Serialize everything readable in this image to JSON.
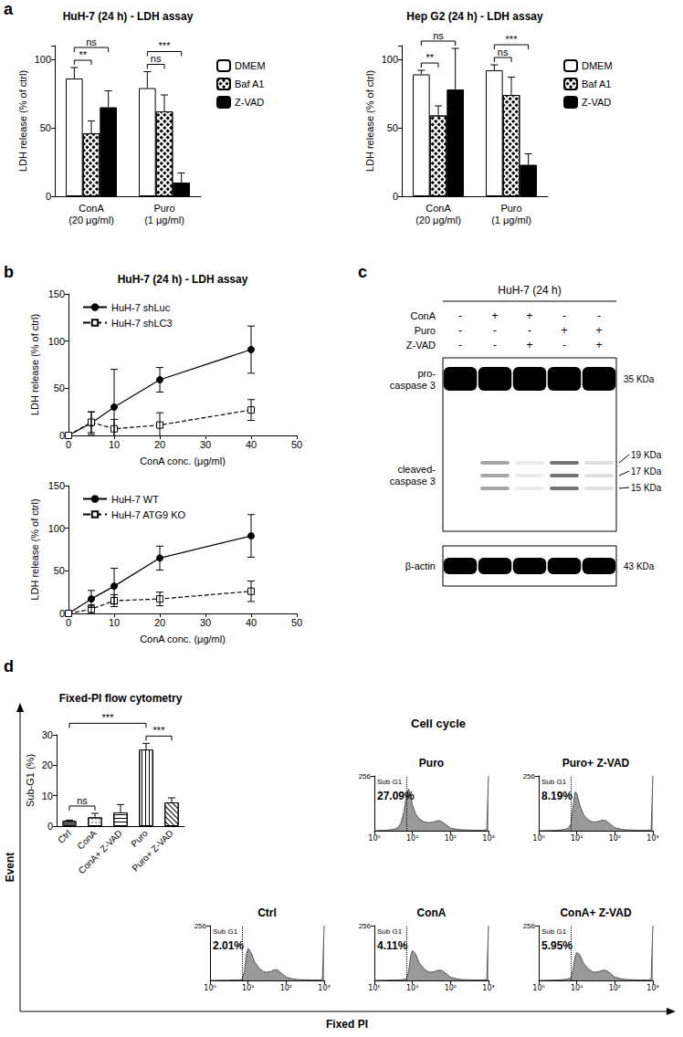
{
  "chart_data": [
    {
      "type": "bar",
      "title": "HuH-7 (24 h) - LDH assay",
      "y_label": "LDH release (% of ctrl)",
      "categories": [
        "ConA\n(20 μg/ml)",
        "Puro\n(1 μg/ml)"
      ],
      "series": [
        {
          "name": "DMEM",
          "color": "#ffffff",
          "values": [
            86,
            79
          ],
          "errors": [
            8,
            12
          ]
        },
        {
          "name": "Baf A1",
          "color": "#ffffff",
          "values": [
            46,
            62
          ],
          "errors": [
            9,
            12
          ]
        },
        {
          "name": "Z-VAD",
          "color": "#000000",
          "values": [
            65,
            10
          ],
          "errors": [
            12,
            7
          ]
        }
      ],
      "ylim": [
        0,
        110
      ],
      "yticks": [
        0,
        50,
        100
      ],
      "legend": "right",
      "grid": false,
      "annotations": [
        {
          "category": 0,
          "from": 0,
          "to": 1,
          "text": "**"
        },
        {
          "category": 0,
          "from": 0,
          "to": 2,
          "text": "ns"
        },
        {
          "category": 1,
          "from": 0,
          "to": 1,
          "text": "ns"
        },
        {
          "category": 1,
          "from": 0,
          "to": 2,
          "text": "***"
        }
      ]
    },
    {
      "type": "bar",
      "title": "Hep G2 (24 h) - LDH assay",
      "y_label": "LDH release (% of ctrl)",
      "categories": [
        "ConA\n(20 μg/ml)",
        "Puro\n(1 μg/ml)"
      ],
      "series": [
        {
          "name": "DMEM",
          "color": "#ffffff",
          "values": [
            89,
            92
          ],
          "errors": [
            3,
            4
          ]
        },
        {
          "name": "Baf A1",
          "color": "#ffffff",
          "values": [
            59,
            74
          ],
          "errors": [
            7,
            13
          ]
        },
        {
          "name": "Z-VAD",
          "color": "#000000",
          "values": [
            78,
            23
          ],
          "errors": [
            30,
            8
          ]
        }
      ],
      "ylim": [
        0,
        110
      ],
      "yticks": [
        0,
        50,
        100
      ],
      "legend": "right",
      "grid": false,
      "annotations": [
        {
          "category": 0,
          "from": 0,
          "to": 1,
          "text": "**"
        },
        {
          "category": 0,
          "from": 0,
          "to": 2,
          "text": "ns"
        },
        {
          "category": 1,
          "from": 0,
          "to": 1,
          "text": "ns"
        },
        {
          "category": 1,
          "from": 0,
          "to": 2,
          "text": "***"
        }
      ]
    },
    {
      "type": "line",
      "title": "HuH-7 (24 h) - LDH assay",
      "x_label": "ConA conc. (μg/ml)",
      "y_label": "LDH release (% of ctrl)",
      "x": [
        0,
        5,
        10,
        20,
        40
      ],
      "series": [
        {
          "name": "HuH-7 shLuc",
          "color": "#000000",
          "marker": "circle",
          "line_style": "solid",
          "values": [
            0,
            13,
            30,
            59,
            91
          ],
          "errors": [
            0,
            12,
            40,
            13,
            25
          ]
        },
        {
          "name": "HuH-7 shLC3",
          "color": "#000000",
          "marker": "square_open",
          "line_style": "dashed",
          "values": [
            0,
            14,
            7,
            11,
            27
          ],
          "errors": [
            0,
            11,
            10,
            13,
            11
          ]
        }
      ],
      "xlim": [
        0,
        50
      ],
      "xticks": [
        0,
        10,
        20,
        30,
        40,
        50
      ],
      "ylim": [
        0,
        150
      ],
      "yticks": [
        0,
        50,
        100,
        150
      ],
      "legend": "upper left",
      "grid": false
    },
    {
      "type": "line",
      "x_label": "ConA conc. (μg/ml)",
      "y_label": "LDH release (% of ctrl)",
      "x": [
        0,
        5,
        10,
        20,
        40
      ],
      "series": [
        {
          "name": "HuH-7 WT",
          "color": "#000000",
          "marker": "circle",
          "line_style": "solid",
          "values": [
            0,
            17,
            32,
            65,
            91
          ],
          "errors": [
            0,
            10,
            21,
            14,
            25
          ]
        },
        {
          "name": "HuH-7 ATG9 KO",
          "color": "#000000",
          "marker": "square_open",
          "line_style": "dashed",
          "values": [
            0,
            5,
            15,
            17,
            26
          ],
          "errors": [
            0,
            5,
            7,
            8,
            12
          ]
        }
      ],
      "xlim": [
        0,
        50
      ],
      "xticks": [
        0,
        10,
        20,
        30,
        40,
        50
      ],
      "ylim": [
        0,
        150
      ],
      "yticks": [
        0,
        50,
        100,
        150
      ],
      "legend": "upper left",
      "grid": false
    },
    {
      "type": "bar",
      "title": "Fixed-PI flow cytometry",
      "y_label": "Sub-G1 (%)",
      "categories": [
        "Ctrl",
        "ConA",
        "ConA+ Z-VAD",
        "Puro",
        "Puro+ Z-VAD"
      ],
      "values": [
        1.8,
        2.9,
        4.5,
        25.2,
        7.8
      ],
      "errors": [
        0.2,
        1.3,
        2.6,
        2.0,
        1.5
      ],
      "colors": [
        "#595959",
        "#ffffff",
        "#ffffff",
        "#ffffff",
        "#ffffff"
      ],
      "ylim": [
        0,
        30
      ],
      "yticks": [
        0,
        10,
        20,
        30
      ],
      "grid": false,
      "annotations": [
        {
          "from": 0,
          "to": 1,
          "text": "ns"
        },
        {
          "from": 3,
          "to": 4,
          "text": "***"
        },
        {
          "from": 0,
          "to": 3,
          "text": "***"
        }
      ]
    },
    {
      "type": "area",
      "title": "Puro",
      "log": "x",
      "x": [
        1,
        2,
        3,
        4,
        5,
        6,
        7,
        8,
        9,
        10,
        12,
        15,
        20,
        25,
        30,
        40,
        50,
        60,
        80,
        100,
        150,
        200,
        300,
        500,
        700,
        900,
        1000
      ],
      "values": [
        0,
        2,
        5,
        12,
        35,
        90,
        170,
        195,
        160,
        120,
        80,
        55,
        42,
        38,
        38,
        43,
        48,
        42,
        25,
        12,
        6,
        4,
        3,
        2,
        2,
        4,
        256
      ],
      "xlim": [
        1,
        1000
      ],
      "xticks": [
        {
          "value": 1,
          "label": "10⁰"
        },
        {
          "value": 10,
          "label": "10¹"
        },
        {
          "value": 100,
          "label": "10²"
        },
        {
          "value": 1000,
          "label": "10³"
        }
      ],
      "ylim": [
        0,
        256
      ],
      "yticks": [
        256
      ],
      "grid": false,
      "gate": {
        "x": 7,
        "label": "Sub G1",
        "percent": 27.09,
        "percent_label": "27.09%"
      }
    },
    {
      "type": "area",
      "title": "Puro+ Z-VAD",
      "log": "x",
      "x": [
        1,
        2,
        3,
        4,
        5,
        6,
        7,
        8,
        9,
        10,
        12,
        15,
        20,
        25,
        30,
        40,
        50,
        60,
        80,
        100,
        150,
        200,
        300,
        500,
        700,
        900,
        1000
      ],
      "values": [
        0,
        1,
        2,
        4,
        7,
        12,
        30,
        110,
        180,
        175,
        120,
        75,
        50,
        42,
        40,
        45,
        50,
        45,
        28,
        14,
        6,
        4,
        3,
        2,
        2,
        4,
        256
      ],
      "xlim": [
        1,
        1000
      ],
      "xticks": [
        {
          "value": 1,
          "label": "10⁰"
        },
        {
          "value": 10,
          "label": "10¹"
        },
        {
          "value": 100,
          "label": "10²"
        },
        {
          "value": 1000,
          "label": "10³"
        }
      ],
      "ylim": [
        0,
        256
      ],
      "yticks": [
        256
      ],
      "grid": false,
      "gate": {
        "x": 7,
        "label": "Sub G1",
        "percent": 8.19,
        "percent_label": "8.19%"
      }
    },
    {
      "type": "area",
      "title": "Ctrl",
      "log": "x",
      "x": [
        1,
        2,
        3,
        4,
        5,
        6,
        7,
        8,
        9,
        10,
        12,
        15,
        20,
        25,
        30,
        40,
        50,
        60,
        80,
        100,
        150,
        200,
        300,
        500,
        700,
        900,
        1000
      ],
      "values": [
        0,
        1,
        1,
        2,
        2,
        3,
        5,
        40,
        120,
        150,
        130,
        85,
        55,
        42,
        38,
        42,
        50,
        48,
        30,
        15,
        7,
        4,
        3,
        2,
        2,
        4,
        256
      ],
      "xlim": [
        1,
        1000
      ],
      "xticks": [
        {
          "value": 1,
          "label": "10⁰"
        },
        {
          "value": 10,
          "label": "10¹"
        },
        {
          "value": 100,
          "label": "10²"
        },
        {
          "value": 1000,
          "label": "10³"
        }
      ],
      "ylim": [
        0,
        256
      ],
      "yticks": [
        256
      ],
      "grid": false,
      "gate": {
        "x": 7,
        "label": "Sub G1",
        "percent": 2.01,
        "percent_label": "2.01%"
      }
    },
    {
      "type": "area",
      "title": "ConA",
      "log": "x",
      "x": [
        1,
        2,
        3,
        4,
        5,
        6,
        7,
        8,
        9,
        10,
        12,
        15,
        20,
        25,
        30,
        40,
        50,
        60,
        80,
        100,
        150,
        200,
        300,
        500,
        700,
        900,
        1000
      ],
      "values": [
        0,
        1,
        2,
        2,
        3,
        5,
        8,
        45,
        115,
        140,
        125,
        82,
        55,
        42,
        38,
        42,
        48,
        46,
        30,
        15,
        7,
        4,
        3,
        2,
        2,
        4,
        256
      ],
      "xlim": [
        1,
        1000
      ],
      "xticks": [
        {
          "value": 1,
          "label": "10⁰"
        },
        {
          "value": 10,
          "label": "10¹"
        },
        {
          "value": 100,
          "label": "10²"
        },
        {
          "value": 1000,
          "label": "10³"
        }
      ],
      "ylim": [
        0,
        256
      ],
      "yticks": [
        256
      ],
      "grid": false,
      "gate": {
        "x": 7,
        "label": "Sub G1",
        "percent": 4.11,
        "percent_label": "4.11%"
      }
    },
    {
      "type": "area",
      "title": "ConA+ Z-VAD",
      "log": "x",
      "x": [
        1,
        2,
        3,
        4,
        5,
        6,
        7,
        8,
        9,
        10,
        12,
        15,
        20,
        25,
        30,
        40,
        50,
        60,
        80,
        100,
        150,
        200,
        300,
        500,
        700,
        900,
        1000
      ],
      "values": [
        0,
        1,
        2,
        3,
        5,
        7,
        12,
        50,
        110,
        130,
        120,
        80,
        54,
        42,
        38,
        42,
        48,
        46,
        30,
        15,
        7,
        4,
        3,
        2,
        2,
        4,
        256
      ],
      "xlim": [
        1,
        1000
      ],
      "xticks": [
        {
          "value": 1,
          "label": "10⁰"
        },
        {
          "value": 10,
          "label": "10¹"
        },
        {
          "value": 100,
          "label": "10²"
        },
        {
          "value": 1000,
          "label": "10³"
        }
      ],
      "ylim": [
        0,
        256
      ],
      "yticks": [
        256
      ],
      "grid": false,
      "gate": {
        "x": 7,
        "label": "Sub G1",
        "percent": 5.95,
        "percent_label": "5.95%"
      }
    }
  ],
  "panel_labels": [
    "a",
    "b",
    "c",
    "d"
  ],
  "cell_cycle": {
    "title": "Cell cycle",
    "x_label": "Fixed PI",
    "y_label": "Event"
  },
  "blot": {
    "title": "HuH-7 (24 h)",
    "treatments": [
      {
        "name": "ConA",
        "lanes": [
          "-",
          "+",
          "+",
          "-",
          "-"
        ]
      },
      {
        "name": "Puro",
        "lanes": [
          "-",
          "-",
          "-",
          "+",
          "+"
        ]
      },
      {
        "name": "Z-VAD",
        "lanes": [
          "-",
          "-",
          "+",
          "-",
          "+"
        ]
      }
    ],
    "bands": [
      {
        "label": "pro-\ncaspase 3",
        "sizes": [
          "35 KDa"
        ],
        "signal": [
          1,
          1,
          1,
          1,
          1
        ]
      },
      {
        "label": "cleaved-\ncaspase 3",
        "sizes": [
          "19 KDa",
          "17 KDa",
          "15 KDa"
        ],
        "signal": [
          0,
          0.35,
          0.08,
          0.55,
          0.12
        ]
      },
      {
        "label": "β-actin",
        "sizes": [
          "43 KDa"
        ],
        "signal": [
          1,
          1,
          1,
          1,
          1
        ]
      }
    ]
  }
}
